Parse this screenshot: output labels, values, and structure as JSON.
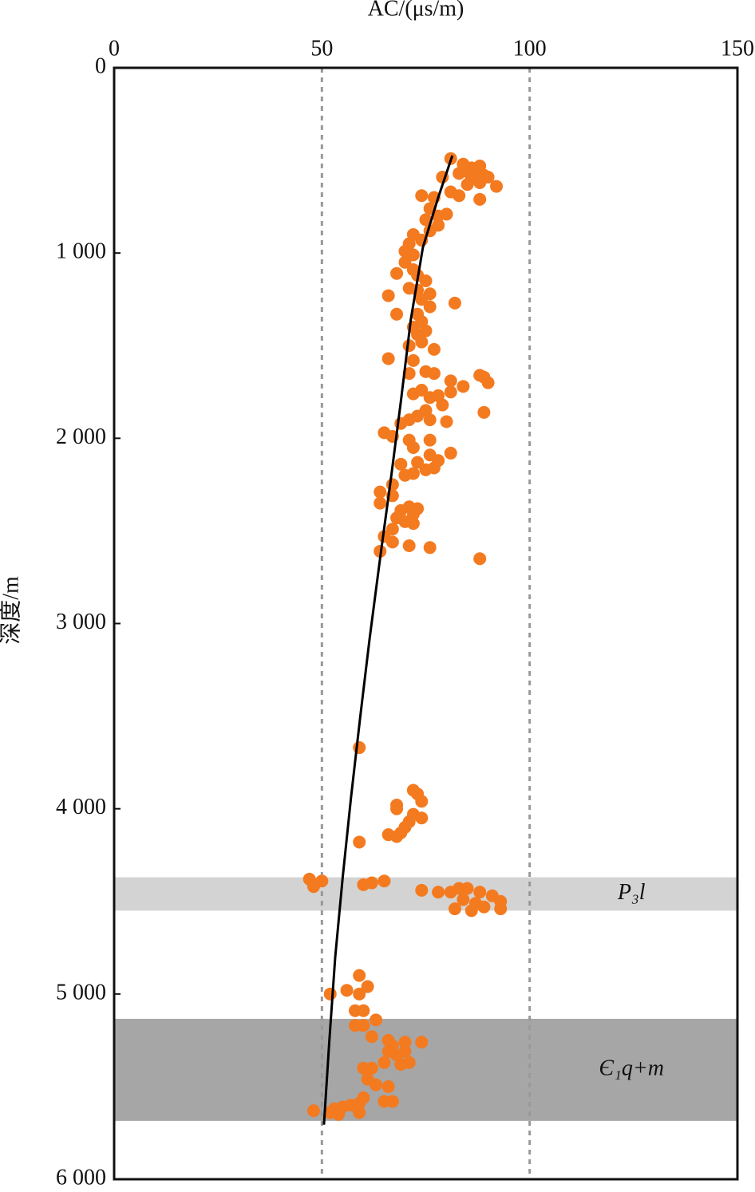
{
  "chart_data": {
    "type": "scatter",
    "x_label": "AC/(μs/m)",
    "y_label": "深度/m",
    "xlim": [
      0,
      150
    ],
    "ylim": [
      0,
      6000
    ],
    "y_reversed": true,
    "x_axis_position": "top",
    "xticks": [
      0,
      50,
      100,
      150
    ],
    "yticks": [
      0,
      {
        "value": 1000,
        "label": "1 000"
      },
      {
        "value": 2000,
        "label": "2 000"
      },
      {
        "value": 3000,
        "label": "3 000"
      },
      {
        "value": 4000,
        "label": "4 000"
      },
      {
        "value": 5000,
        "label": "5 000"
      },
      {
        "value": 6000,
        "label": "6 000"
      }
    ],
    "grid": true,
    "regions": [
      {
        "label": "P₃l",
        "range": [
          4370,
          4550
        ],
        "color": "#d3d3d3"
      },
      {
        "label": "Є₁q+m",
        "range": [
          5134,
          5685
        ],
        "color": "#a6a6a6"
      }
    ],
    "series": [
      {
        "type": "scatter",
        "color": "#f47a1f",
        "points": [
          [
            81,
            490
          ],
          [
            84,
            520
          ],
          [
            86,
            540
          ],
          [
            88,
            530
          ],
          [
            85,
            560
          ],
          [
            87,
            580
          ],
          [
            89,
            580
          ],
          [
            83,
            570
          ],
          [
            79,
            590
          ],
          [
            86,
            600
          ],
          [
            90,
            590
          ],
          [
            92,
            640
          ],
          [
            85,
            630
          ],
          [
            88,
            620
          ],
          [
            81,
            670
          ],
          [
            83,
            690
          ],
          [
            88,
            710
          ],
          [
            77,
            700
          ],
          [
            74,
            690
          ],
          [
            76,
            760
          ],
          [
            80,
            790
          ],
          [
            78,
            800
          ],
          [
            75,
            820
          ],
          [
            78,
            850
          ],
          [
            76,
            880
          ],
          [
            72,
            900
          ],
          [
            74,
            930
          ],
          [
            71,
            950
          ],
          [
            70,
            990
          ],
          [
            72,
            1010
          ],
          [
            70,
            1050
          ],
          [
            72,
            1090
          ],
          [
            68,
            1110
          ],
          [
            73,
            1120
          ],
          [
            75,
            1150
          ],
          [
            71,
            1190
          ],
          [
            73,
            1200
          ],
          [
            76,
            1220
          ],
          [
            66,
            1230
          ],
          [
            74,
            1250
          ],
          [
            82,
            1270
          ],
          [
            76,
            1290
          ],
          [
            73,
            1330
          ],
          [
            68,
            1330
          ],
          [
            74,
            1370
          ],
          [
            72,
            1400
          ],
          [
            75,
            1420
          ],
          [
            73,
            1440
          ],
          [
            74,
            1480
          ],
          [
            71,
            1500
          ],
          [
            77,
            1520
          ],
          [
            66,
            1570
          ],
          [
            72,
            1580
          ],
          [
            75,
            1640
          ],
          [
            71,
            1650
          ],
          [
            77,
            1650
          ],
          [
            89,
            1670
          ],
          [
            81,
            1690
          ],
          [
            88,
            1660
          ],
          [
            90,
            1700
          ],
          [
            84,
            1720
          ],
          [
            74,
            1740
          ],
          [
            72,
            1760
          ],
          [
            76,
            1780
          ],
          [
            78,
            1770
          ],
          [
            81,
            1750
          ],
          [
            79,
            1820
          ],
          [
            75,
            1850
          ],
          [
            73,
            1880
          ],
          [
            76,
            1900
          ],
          [
            89,
            1860
          ],
          [
            71,
            1900
          ],
          [
            80,
            1910
          ],
          [
            69,
            1920
          ],
          [
            65,
            1970
          ],
          [
            67,
            1990
          ],
          [
            76,
            2010
          ],
          [
            71,
            2010
          ],
          [
            72,
            2050
          ],
          [
            81,
            2080
          ],
          [
            76,
            2090
          ],
          [
            78,
            2120
          ],
          [
            73,
            2130
          ],
          [
            69,
            2140
          ],
          [
            77,
            2160
          ],
          [
            75,
            2170
          ],
          [
            72,
            2190
          ],
          [
            70,
            2200
          ],
          [
            67,
            2250
          ],
          [
            64,
            2290
          ],
          [
            67,
            2310
          ],
          [
            64,
            2350
          ],
          [
            71,
            2370
          ],
          [
            73,
            2380
          ],
          [
            69,
            2390
          ],
          [
            72,
            2410
          ],
          [
            68,
            2430
          ],
          [
            70,
            2450
          ],
          [
            72,
            2460
          ],
          [
            67,
            2490
          ],
          [
            65,
            2530
          ],
          [
            67,
            2560
          ],
          [
            71,
            2580
          ],
          [
            76,
            2590
          ],
          [
            64,
            2610
          ],
          [
            88,
            2650
          ],
          [
            59,
            3670
          ],
          [
            72,
            3900
          ],
          [
            73,
            3920
          ],
          [
            74,
            3960
          ],
          [
            68,
            3980
          ],
          [
            68,
            4000
          ],
          [
            72,
            4030
          ],
          [
            74,
            4050
          ],
          [
            71,
            4070
          ],
          [
            70,
            4100
          ],
          [
            69,
            4130
          ],
          [
            66,
            4140
          ],
          [
            68,
            4150
          ],
          [
            59,
            4180
          ],
          [
            47,
            4380
          ],
          [
            48,
            4420
          ],
          [
            50,
            4390
          ],
          [
            60,
            4410
          ],
          [
            62,
            4400
          ],
          [
            65,
            4390
          ],
          [
            74,
            4440
          ],
          [
            78,
            4450
          ],
          [
            81,
            4450
          ],
          [
            83,
            4430
          ],
          [
            85,
            4430
          ],
          [
            88,
            4450
          ],
          [
            91,
            4470
          ],
          [
            93,
            4500
          ],
          [
            84,
            4490
          ],
          [
            87,
            4510
          ],
          [
            89,
            4530
          ],
          [
            86,
            4550
          ],
          [
            82,
            4540
          ],
          [
            93,
            4540
          ],
          [
            59,
            4900
          ],
          [
            61,
            4960
          ],
          [
            59,
            5000
          ],
          [
            56,
            4980
          ],
          [
            52,
            5000
          ],
          [
            58,
            5090
          ],
          [
            60,
            5090
          ],
          [
            63,
            5140
          ],
          [
            58,
            5170
          ],
          [
            60,
            5170
          ],
          [
            62,
            5230
          ],
          [
            66,
            5250
          ],
          [
            70,
            5260
          ],
          [
            74,
            5260
          ],
          [
            67,
            5280
          ],
          [
            66,
            5310
          ],
          [
            70,
            5310
          ],
          [
            68,
            5330
          ],
          [
            71,
            5370
          ],
          [
            65,
            5370
          ],
          [
            69,
            5380
          ],
          [
            62,
            5400
          ],
          [
            60,
            5400
          ],
          [
            61,
            5460
          ],
          [
            63,
            5490
          ],
          [
            66,
            5500
          ],
          [
            60,
            5560
          ],
          [
            65,
            5580
          ],
          [
            67,
            5580
          ],
          [
            59,
            5590
          ],
          [
            57,
            5600
          ],
          [
            55,
            5610
          ],
          [
            53,
            5620
          ],
          [
            48,
            5630
          ],
          [
            52,
            5640
          ],
          [
            54,
            5650
          ],
          [
            59,
            5640
          ]
        ]
      },
      {
        "type": "line",
        "color": "#000000",
        "points": [
          [
            81.4,
            474
          ],
          [
            78,
            700
          ],
          [
            74.3,
            969
          ],
          [
            71.4,
            1357
          ],
          [
            69,
            1800
          ],
          [
            66.6,
            2218
          ],
          [
            64,
            2650
          ],
          [
            61.5,
            3079
          ],
          [
            59.2,
            3510
          ],
          [
            57,
            3940
          ],
          [
            55,
            4370
          ],
          [
            53.2,
            4802
          ],
          [
            51.8,
            5250
          ],
          [
            50.5,
            5706
          ]
        ]
      }
    ]
  }
}
